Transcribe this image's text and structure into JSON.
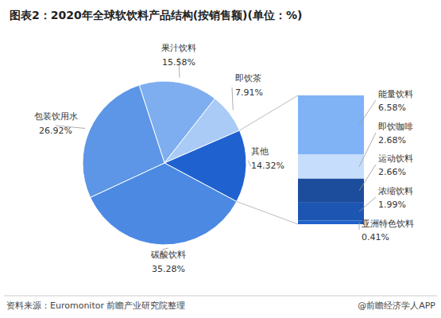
{
  "chart_data": [
    {
      "type": "pie",
      "title": "图表2：2020年全球软饮料产品结构(按销售额)(单位：%)",
      "categories": [
        "果汁饮料",
        "即饮茶",
        "其他",
        "碳酸饮料",
        "包装饮用水"
      ],
      "values": [
        15.58,
        7.91,
        14.32,
        35.28,
        26.92
      ],
      "value_labels": [
        "15.58%",
        "7.91%",
        "14.32%",
        "35.28%",
        "26.92%"
      ],
      "colors": [
        "#7eaef0",
        "#a9cbf6",
        "#1f62cf",
        "#4b89e3",
        "#5d96e6"
      ],
      "data_labels": true
    },
    {
      "type": "bar",
      "stacked": true,
      "tick_labels": false,
      "categories": [
        "能量饮料",
        "即饮咖啡",
        "运动饮料",
        "浓缩饮料",
        "亚洲特色饮料"
      ],
      "values": [
        6.58,
        2.68,
        2.66,
        1.99,
        0.41
      ],
      "value_labels": [
        "6.58%",
        "2.68%",
        "2.66%",
        "1.99%",
        "0.41%"
      ],
      "colors": [
        "#80b2f6",
        "#c6ddfb",
        "#1c4c9c",
        "#1d56b2",
        "#1f61c9"
      ],
      "data_labels": true
    }
  ],
  "footer": {
    "source": "资料来源：Euromonitor 前瞻产业研究院整理",
    "credit": "@前瞻经济学人APP"
  }
}
